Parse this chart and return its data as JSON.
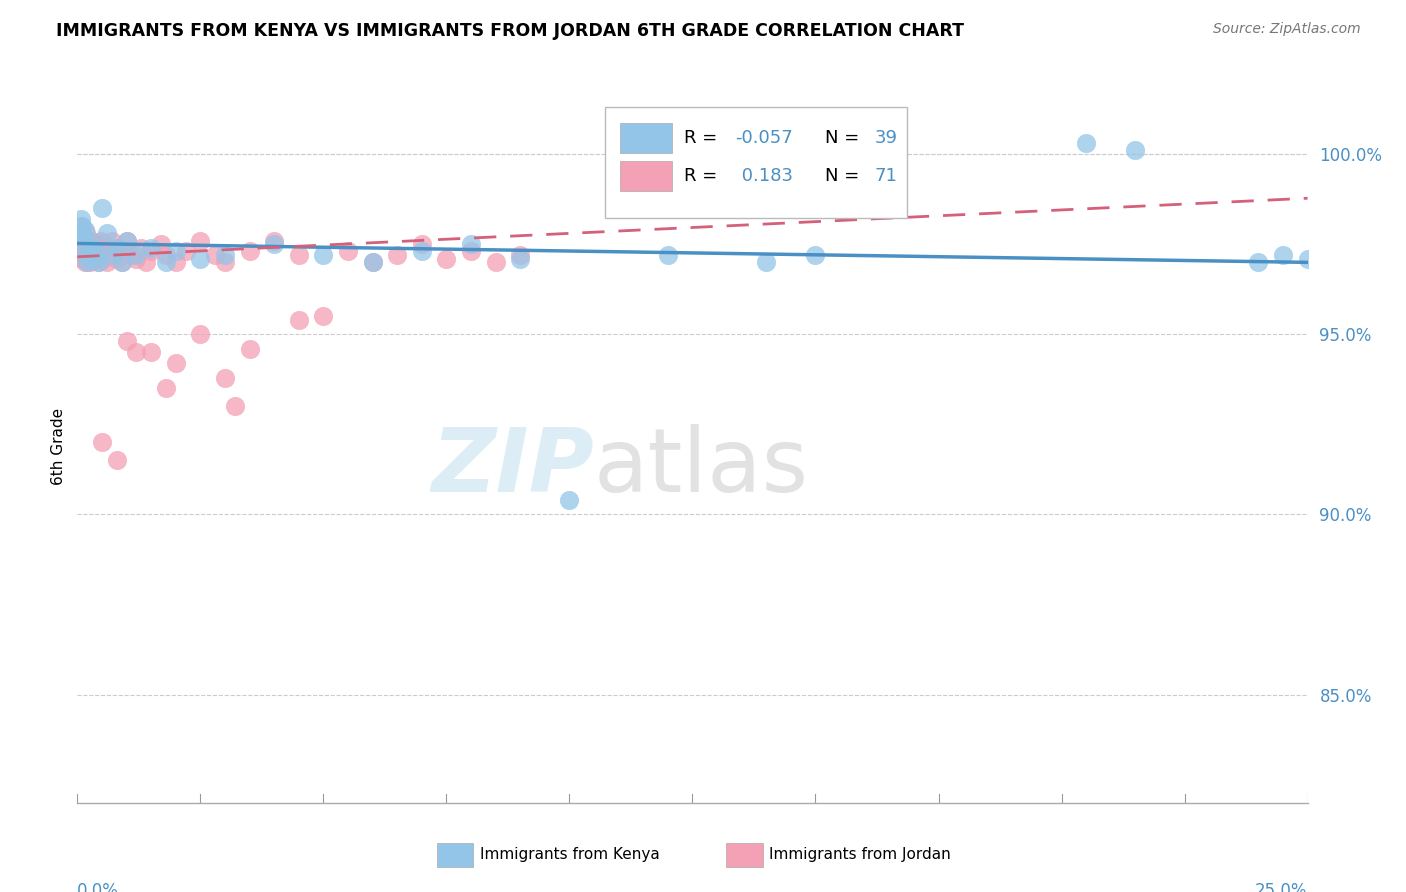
{
  "title": "IMMIGRANTS FROM KENYA VS IMMIGRANTS FROM JORDAN 6TH GRADE CORRELATION CHART",
  "source": "Source: ZipAtlas.com",
  "ylabel": "6th Grade",
  "xlim": [
    0.0,
    25.0
  ],
  "ylim": [
    82.0,
    101.8
  ],
  "yticks": [
    85.0,
    90.0,
    95.0,
    100.0
  ],
  "ytick_labels": [
    "85.0%",
    "90.0%",
    "95.0%",
    "100.0%"
  ],
  "kenya_color": "#92c5e8",
  "jordan_color": "#f4a0b5",
  "kenya_trendline_color": "#4a90c4",
  "jordan_trendline_color": "#d4607a",
  "kenya_R": -0.057,
  "kenya_N": 39,
  "jordan_R": 0.183,
  "jordan_N": 71,
  "kenya_x": [
    0.05,
    0.08,
    0.1,
    0.12,
    0.15,
    0.18,
    0.2,
    0.25,
    0.3,
    0.35,
    0.4,
    0.45,
    0.5,
    0.6,
    0.7,
    0.8,
    0.9,
    1.0,
    1.2,
    1.5,
    1.8,
    2.0,
    2.5,
    3.0,
    4.0,
    5.0,
    6.0,
    7.0,
    8.0,
    9.0,
    10.0,
    12.0,
    14.0,
    15.0,
    20.5,
    21.5,
    24.0,
    24.5,
    25.0
  ],
  "kenya_y": [
    97.8,
    98.2,
    98.0,
    97.5,
    97.9,
    97.2,
    97.0,
    97.6,
    97.4,
    97.1,
    97.3,
    97.0,
    98.5,
    97.8,
    97.2,
    97.4,
    97.0,
    97.6,
    97.2,
    97.4,
    97.0,
    97.3,
    97.1,
    97.2,
    97.5,
    97.2,
    97.0,
    97.3,
    97.5,
    97.1,
    90.4,
    97.2,
    97.0,
    97.2,
    100.3,
    100.1,
    97.0,
    97.2,
    97.1
  ],
  "jordan_x": [
    0.03,
    0.05,
    0.07,
    0.08,
    0.1,
    0.12,
    0.13,
    0.15,
    0.16,
    0.18,
    0.2,
    0.22,
    0.25,
    0.27,
    0.3,
    0.32,
    0.35,
    0.38,
    0.4,
    0.42,
    0.45,
    0.48,
    0.5,
    0.52,
    0.55,
    0.58,
    0.6,
    0.65,
    0.7,
    0.75,
    0.8,
    0.85,
    0.9,
    0.95,
    1.0,
    1.1,
    1.2,
    1.3,
    1.4,
    1.5,
    1.7,
    1.8,
    2.0,
    2.2,
    2.5,
    2.8,
    3.0,
    3.5,
    4.0,
    4.5,
    5.0,
    5.5,
    6.0,
    6.5,
    7.0,
    7.5,
    8.0,
    8.5,
    9.0,
    1.0,
    1.5,
    2.0,
    3.0,
    3.5,
    4.5,
    0.5,
    0.8,
    1.2,
    1.8,
    2.5,
    3.2
  ],
  "jordan_y": [
    97.5,
    98.0,
    97.8,
    97.3,
    97.6,
    97.1,
    97.4,
    97.0,
    97.3,
    97.8,
    97.5,
    97.2,
    97.0,
    97.4,
    97.6,
    97.3,
    97.1,
    97.5,
    97.2,
    97.0,
    97.4,
    97.6,
    97.3,
    97.1,
    97.5,
    97.2,
    97.0,
    97.3,
    97.6,
    97.2,
    97.1,
    97.4,
    97.0,
    97.3,
    97.6,
    97.2,
    97.1,
    97.4,
    97.0,
    97.3,
    97.5,
    97.2,
    97.0,
    97.3,
    97.6,
    97.2,
    97.0,
    97.3,
    97.6,
    97.2,
    95.5,
    97.3,
    97.0,
    97.2,
    97.5,
    97.1,
    97.3,
    97.0,
    97.2,
    94.8,
    94.5,
    94.2,
    93.8,
    94.6,
    95.4,
    92.0,
    91.5,
    94.5,
    93.5,
    95.0,
    93.0
  ]
}
